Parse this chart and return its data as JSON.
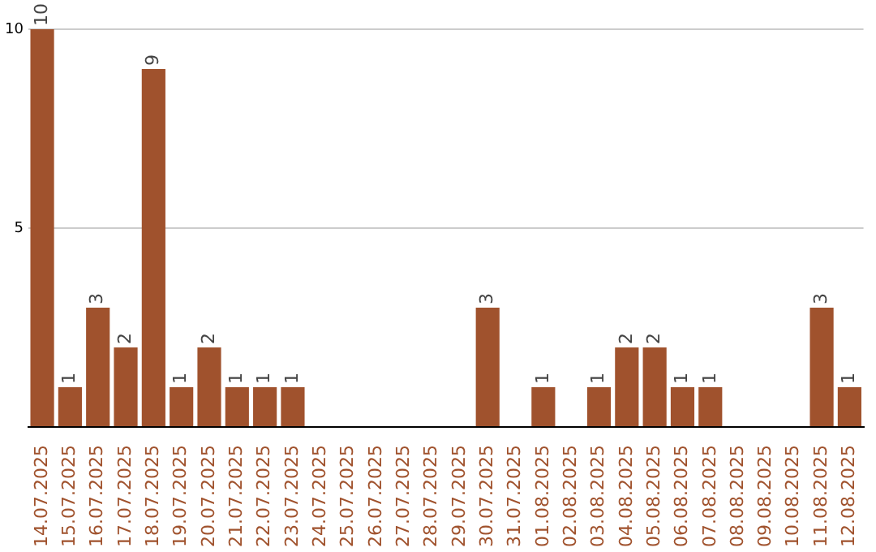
{
  "chart_data": {
    "type": "bar",
    "categories": [
      "14.07.2025",
      "15.07.2025",
      "16.07.2025",
      "17.07.2025",
      "18.07.2025",
      "19.07.2025",
      "20.07.2025",
      "21.07.2025",
      "22.07.2025",
      "23.07.2025",
      "24.07.2025",
      "25.07.2025",
      "26.07.2025",
      "27.07.2025",
      "28.07.2025",
      "29.07.2025",
      "30.07.2025",
      "31.07.2025",
      "01.08.2025",
      "02.08.2025",
      "03.08.2025",
      "04.08.2025",
      "05.08.2025",
      "06.08.2025",
      "07.08.2025",
      "08.08.2025",
      "09.08.2025",
      "10.08.2025",
      "11.08.2025",
      "12.08.2025"
    ],
    "values": [
      10,
      1,
      3,
      2,
      9,
      1,
      2,
      1,
      1,
      1,
      0,
      0,
      0,
      0,
      0,
      0,
      3,
      0,
      1,
      0,
      1,
      2,
      2,
      1,
      1,
      0,
      0,
      0,
      3,
      1
    ],
    "value_labels": [
      "10",
      "1",
      "3",
      "2",
      "9",
      "1",
      "2",
      "1",
      "1",
      "1",
      null,
      null,
      null,
      null,
      null,
      null,
      "3",
      null,
      "1",
      null,
      "1",
      "2",
      "2",
      "1",
      "1",
      null,
      null,
      null,
      "3",
      "1"
    ],
    "color": "#a0522d",
    "ylim": [
      0,
      10
    ],
    "yticks": [
      {
        "value": 0,
        "label": null
      },
      5,
      10
    ],
    "grid": "y"
  }
}
